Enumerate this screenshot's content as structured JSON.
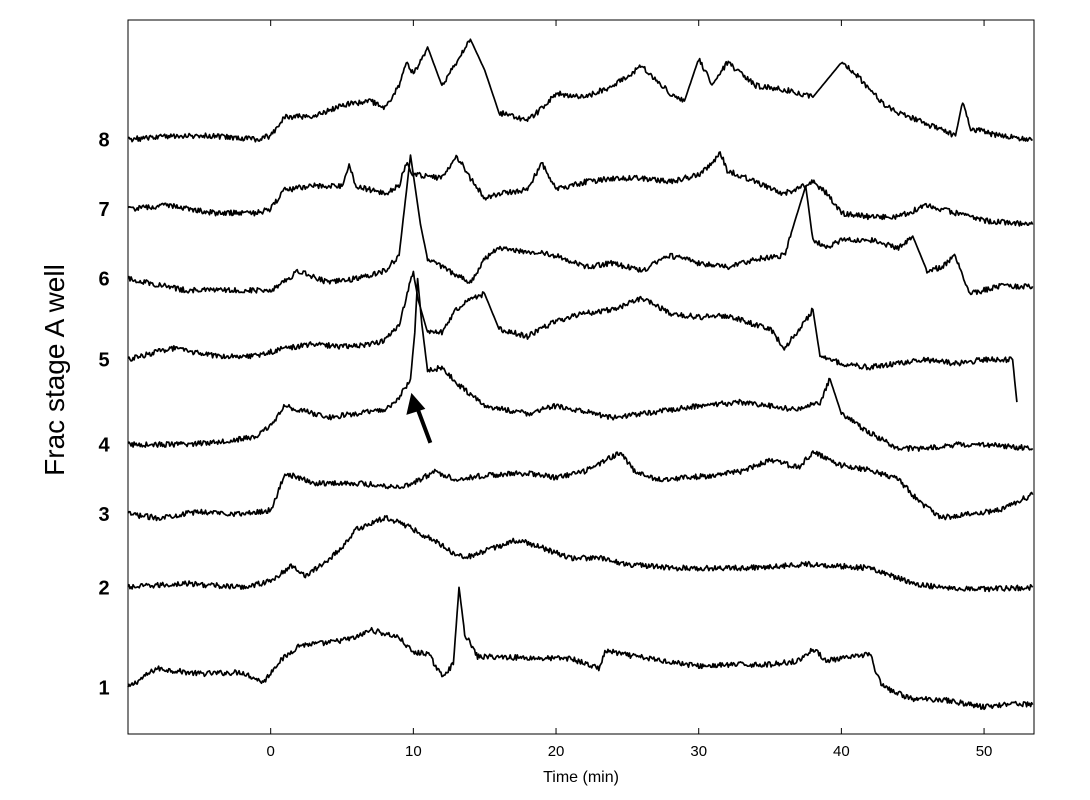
{
  "chart_data": {
    "type": "line",
    "title": "",
    "xlabel": "Time (min)",
    "ylabel": "Frac stage A well",
    "xlim": [
      -10,
      53.5
    ],
    "x_ticks": [
      "0",
      "10",
      "20",
      "30",
      "40",
      "50"
    ],
    "x_tick_values": [
      0,
      10,
      20,
      30,
      40,
      50
    ],
    "grid": false,
    "legend": "none",
    "annotation": {
      "type": "arrow",
      "description": "arrow pointing to the peak of trace 4 near 10 min",
      "x": 10,
      "series": "4"
    },
    "series": [
      {
        "name": "1",
        "x": [
          -10,
          -8,
          -5,
          -2,
          -0.5,
          0.5,
          2,
          4,
          6,
          7,
          8,
          9,
          10,
          11,
          12,
          12.8,
          13.2,
          13.6,
          14.5,
          16,
          19,
          21,
          23,
          23.5,
          25,
          30,
          33,
          35,
          37,
          38,
          39,
          41,
          42,
          42.5,
          43,
          45,
          47,
          50,
          52,
          53.4
        ],
        "values": [
          0.9,
          1.15,
          1.08,
          1.1,
          0.97,
          1.22,
          1.45,
          1.48,
          1.55,
          1.65,
          1.6,
          1.55,
          1.35,
          1.35,
          1.05,
          1.2,
          2.2,
          1.6,
          1.3,
          1.3,
          1.28,
          1.28,
          1.15,
          1.38,
          1.32,
          1.18,
          1.2,
          1.2,
          1.25,
          1.4,
          1.25,
          1.3,
          1.35,
          1.05,
          0.9,
          0.75,
          0.75,
          0.65,
          0.7,
          0.68
        ]
      },
      {
        "name": "2",
        "x": [
          -10,
          -6,
          -2,
          0,
          1.5,
          2.5,
          4,
          5,
          6,
          8,
          9,
          10,
          12,
          13,
          14,
          17,
          18,
          21,
          23,
          25,
          28,
          30,
          33,
          36,
          38,
          42,
          45,
          47,
          50,
          53.4
        ],
        "values": [
          2.2,
          2.25,
          2.2,
          2.28,
          2.48,
          2.35,
          2.55,
          2.72,
          2.95,
          3.1,
          3.05,
          2.95,
          2.75,
          2.62,
          2.6,
          2.8,
          2.78,
          2.58,
          2.58,
          2.5,
          2.45,
          2.45,
          2.45,
          2.48,
          2.5,
          2.45,
          2.25,
          2.2,
          2.18,
          2.2
        ]
      },
      {
        "name": "3",
        "x": [
          -10,
          -8,
          -5,
          -2,
          0,
          0.5,
          1,
          3,
          6,
          9,
          10,
          11.5,
          13,
          15,
          18,
          20,
          22,
          24.5,
          25.5,
          27,
          29,
          31,
          33,
          35,
          37,
          38,
          40,
          42,
          44,
          45.5,
          47,
          49,
          51,
          53.4
        ],
        "values": [
          3.15,
          3.1,
          3.18,
          3.15,
          3.2,
          3.42,
          3.68,
          3.55,
          3.55,
          3.5,
          3.55,
          3.7,
          3.6,
          3.65,
          3.68,
          3.62,
          3.7,
          3.95,
          3.7,
          3.6,
          3.62,
          3.65,
          3.7,
          3.85,
          3.75,
          3.95,
          3.78,
          3.72,
          3.6,
          3.3,
          3.1,
          3.15,
          3.2,
          3.4
        ]
      },
      {
        "name": "4",
        "x": [
          -10,
          -6,
          -3,
          -1,
          0,
          1,
          2,
          4,
          6,
          8,
          9,
          9.8,
          10.1,
          10.3,
          10.6,
          11,
          12,
          13,
          14,
          15,
          16.5,
          18,
          20,
          24,
          26,
          28,
          30,
          33,
          35,
          37,
          38.5,
          39.2,
          40,
          42,
          44,
          46,
          48,
          50,
          53.4
        ],
        "values": [
          4.05,
          4.05,
          4.1,
          4.15,
          4.3,
          4.55,
          4.5,
          4.4,
          4.45,
          4.5,
          4.65,
          4.9,
          5.5,
          6.2,
          5.6,
          5.0,
          5.05,
          4.85,
          4.7,
          4.55,
          4.5,
          4.45,
          4.55,
          4.4,
          4.45,
          4.5,
          4.55,
          4.6,
          4.55,
          4.5,
          4.6,
          4.9,
          4.45,
          4.2,
          4.0,
          4.0,
          4.05,
          4.05,
          4.0
        ]
      },
      {
        "name": "5",
        "x": [
          -10,
          -7,
          -4,
          -1,
          1,
          3,
          5,
          7,
          8,
          9,
          9.5,
          10,
          10.3,
          11,
          12,
          13,
          14,
          15,
          16,
          18,
          20,
          22,
          24,
          26,
          28,
          30,
          32,
          34,
          35,
          36,
          37.5,
          38,
          38.5,
          40,
          42,
          44,
          46,
          48,
          50,
          52,
          52.3
        ],
        "values": [
          5.15,
          5.3,
          5.2,
          5.2,
          5.3,
          5.35,
          5.32,
          5.35,
          5.4,
          5.6,
          5.95,
          6.3,
          5.95,
          5.5,
          5.5,
          5.8,
          5.95,
          6.0,
          5.55,
          5.45,
          5.65,
          5.75,
          5.8,
          5.95,
          5.75,
          5.7,
          5.72,
          5.6,
          5.55,
          5.3,
          5.65,
          5.8,
          5.2,
          5.1,
          5.05,
          5.1,
          5.15,
          5.1,
          5.15,
          5.15,
          4.6
        ]
      },
      {
        "name": "6",
        "x": [
          -10,
          -6,
          -3,
          0,
          2,
          4,
          6,
          8,
          9,
          9.8,
          10.5,
          11,
          12,
          13,
          14,
          15,
          16,
          18,
          20,
          22,
          24,
          26,
          28,
          30,
          32,
          34,
          36,
          36.5,
          37.5,
          38,
          39,
          40,
          42,
          44,
          45,
          46,
          47,
          48,
          48.5,
          49,
          51,
          53.4
        ],
        "values": [
          6.2,
          6.05,
          6.05,
          6.05,
          6.3,
          6.15,
          6.2,
          6.3,
          6.5,
          7.8,
          6.9,
          6.45,
          6.35,
          6.25,
          6.15,
          6.45,
          6.6,
          6.55,
          6.5,
          6.35,
          6.4,
          6.3,
          6.5,
          6.4,
          6.35,
          6.45,
          6.5,
          6.8,
          7.4,
          6.7,
          6.6,
          6.7,
          6.7,
          6.6,
          6.75,
          6.3,
          6.35,
          6.5,
          6.25,
          6.0,
          6.1,
          6.1
        ]
      },
      {
        "name": "7",
        "x": [
          -10,
          -7,
          -4,
          -1,
          0,
          1,
          3,
          5,
          5.5,
          6,
          8,
          9,
          9.5,
          10,
          12,
          13,
          14,
          15,
          16,
          18,
          19,
          20,
          22,
          24,
          26,
          28,
          30,
          31,
          31.5,
          32,
          34,
          36,
          38,
          39,
          40,
          42,
          44,
          46,
          48,
          50,
          53.4
        ],
        "values": [
          7.1,
          7.15,
          7.05,
          7.05,
          7.1,
          7.35,
          7.4,
          7.4,
          7.65,
          7.4,
          7.3,
          7.4,
          7.7,
          7.55,
          7.5,
          7.8,
          7.5,
          7.25,
          7.3,
          7.35,
          7.7,
          7.35,
          7.45,
          7.5,
          7.5,
          7.45,
          7.55,
          7.7,
          7.85,
          7.6,
          7.45,
          7.3,
          7.45,
          7.3,
          7.05,
          7.0,
          7.0,
          7.15,
          7.05,
          6.95,
          6.9
        ]
      },
      {
        "name": "8",
        "x": [
          -10,
          -7,
          -4,
          -1,
          0,
          1,
          3,
          5,
          7,
          8,
          9,
          9.5,
          10,
          11,
          12,
          13,
          14,
          15,
          16,
          18,
          19,
          20,
          22,
          24,
          26,
          28,
          29,
          30,
          31,
          32,
          34,
          36,
          38,
          40,
          41,
          42,
          43,
          44,
          46,
          48,
          48.5,
          49,
          51,
          53.4
        ],
        "values": [
          8.0,
          8.05,
          8.05,
          8.0,
          8.05,
          8.3,
          8.3,
          8.45,
          8.5,
          8.4,
          8.7,
          9.0,
          8.85,
          9.2,
          8.7,
          9.0,
          9.3,
          8.9,
          8.35,
          8.25,
          8.4,
          8.6,
          8.55,
          8.7,
          8.95,
          8.6,
          8.5,
          9.05,
          8.7,
          9.0,
          8.7,
          8.65,
          8.55,
          9.0,
          8.85,
          8.65,
          8.45,
          8.35,
          8.2,
          8.05,
          8.5,
          8.15,
          8.05,
          8.0
        ]
      }
    ]
  }
}
